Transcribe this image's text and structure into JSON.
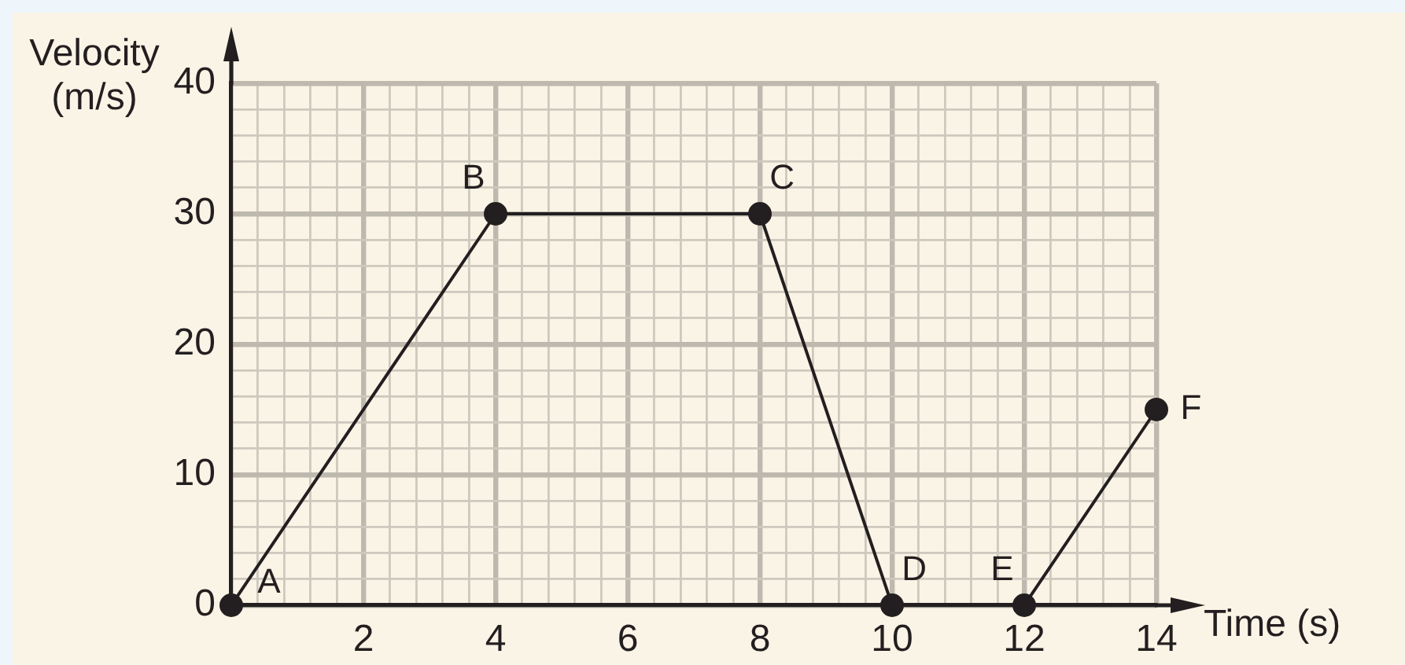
{
  "chart_data": {
    "type": "line",
    "xlabel": "Time (s)",
    "ylabel": "Velocity (m/s)",
    "x": [
      0,
      4,
      8,
      10,
      12,
      14
    ],
    "values": [
      0,
      30,
      30,
      0,
      0,
      15
    ],
    "color": "#231f20",
    "marker": "circle",
    "xlim": [
      0,
      14
    ],
    "ylim": [
      0,
      40
    ],
    "xticks": [
      {
        "value": 0.4,
        "label": null
      },
      {
        "value": 0.8,
        "label": null
      },
      {
        "value": 1.2,
        "label": null
      },
      {
        "value": 1.6,
        "label": null
      },
      2,
      {
        "value": 2.4,
        "label": null
      },
      {
        "value": 2.8,
        "label": null
      },
      {
        "value": 3.2,
        "label": null
      },
      {
        "value": 3.6,
        "label": null
      },
      4,
      {
        "value": 4.4,
        "label": null
      },
      {
        "value": 4.8,
        "label": null
      },
      {
        "value": 5.2,
        "label": null
      },
      {
        "value": 5.6,
        "label": null
      },
      6,
      {
        "value": 6.4,
        "label": null
      },
      {
        "value": 6.8,
        "label": null
      },
      {
        "value": 7.2,
        "label": null
      },
      {
        "value": 7.6,
        "label": null
      },
      8,
      {
        "value": 8.4,
        "label": null
      },
      {
        "value": 8.8,
        "label": null
      },
      {
        "value": 9.2,
        "label": null
      },
      {
        "value": 9.6,
        "label": null
      },
      10,
      {
        "value": 10.4,
        "label": null
      },
      {
        "value": 10.8,
        "label": null
      },
      {
        "value": 11.2,
        "label": null
      },
      {
        "value": 11.6,
        "label": null
      },
      12,
      {
        "value": 12.4,
        "label": null
      },
      {
        "value": 12.8,
        "label": null
      },
      {
        "value": 13.2,
        "label": null
      },
      {
        "value": 13.6,
        "label": null
      },
      14
    ],
    "yticks": [
      0,
      {
        "value": 2,
        "label": null
      },
      {
        "value": 4,
        "label": null
      },
      {
        "value": 6,
        "label": null
      },
      {
        "value": 8,
        "label": null
      },
      10,
      {
        "value": 12,
        "label": null
      },
      {
        "value": 14,
        "label": null
      },
      {
        "value": 16,
        "label": null
      },
      {
        "value": 18,
        "label": null
      },
      20,
      {
        "value": 22,
        "label": null
      },
      {
        "value": 24,
        "label": null
      },
      {
        "value": 26,
        "label": null
      },
      {
        "value": 28,
        "label": null
      },
      30,
      {
        "value": 32,
        "label": null
      },
      {
        "value": 34,
        "label": null
      },
      {
        "value": 36,
        "label": null
      },
      {
        "value": 38,
        "label": null
      },
      40
    ],
    "grid": true,
    "annotations": [
      {
        "text": "A",
        "x": 0,
        "y": 0
      },
      {
        "text": "B",
        "x": 4,
        "y": 30
      },
      {
        "text": "C",
        "x": 8,
        "y": 30
      },
      {
        "text": "D",
        "x": 10,
        "y": 0
      },
      {
        "text": "E",
        "x": 12,
        "y": 0
      },
      {
        "text": "F",
        "x": 14,
        "y": 15
      }
    ]
  }
}
